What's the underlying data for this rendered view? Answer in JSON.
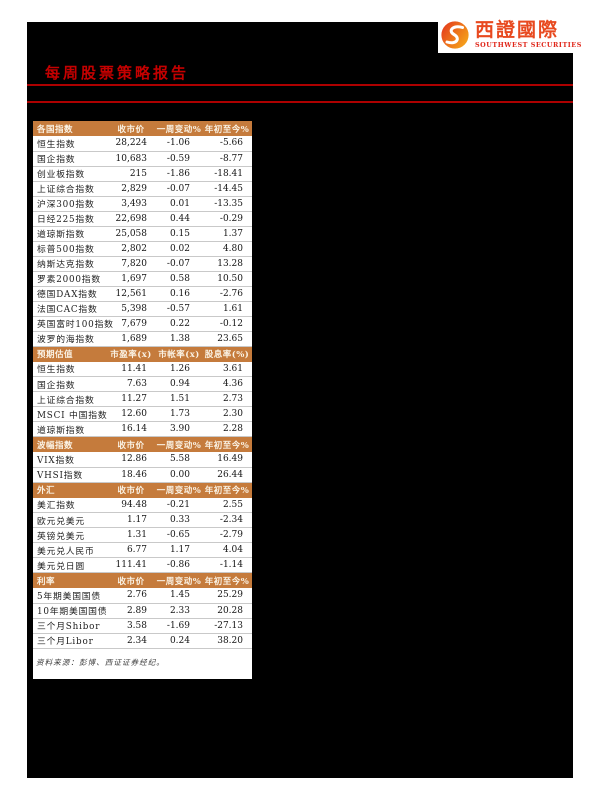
{
  "header": {
    "title": "每周股票策略报告",
    "logo": {
      "cn": "西證國際",
      "en": "SOUTHWEST SECURITIES",
      "icon": "swirl-s-globe-icon"
    }
  },
  "colors": {
    "section_header_orange": "#C57B3C",
    "rule_red": "#AD0000",
    "title_red": "#C40000",
    "logo_red": "#E8491F",
    "page_background": "#000000",
    "panel_background": "#FFFFFF"
  },
  "tables": [
    {
      "header": [
        "各国指数",
        "收市价",
        "一周变动%",
        "年初至今%"
      ],
      "rows": [
        [
          "恒生指数",
          "28,224",
          "-1.06",
          "-5.66"
        ],
        [
          "国企指数",
          "10,683",
          "-0.59",
          "-8.77"
        ],
        [
          "创业板指数",
          "215",
          "-1.86",
          "-18.41"
        ],
        [
          "上证综合指数",
          "2,829",
          "-0.07",
          "-14.45"
        ],
        [
          "沪深300指数",
          "3,493",
          "0.01",
          "-13.35"
        ],
        [
          "日经225指数",
          "22,698",
          "0.44",
          "-0.29"
        ],
        [
          "道琼斯指数",
          "25,058",
          "0.15",
          "1.37"
        ],
        [
          "标普500指数",
          "2,802",
          "0.02",
          "4.80"
        ],
        [
          "纳斯达克指数",
          "7,820",
          "-0.07",
          "13.28"
        ],
        [
          "罗素2000指数",
          "1,697",
          "0.58",
          "10.50"
        ],
        [
          "德国DAX指数",
          "12,561",
          "0.16",
          "-2.76"
        ],
        [
          "法国CAC指数",
          "5,398",
          "-0.57",
          "1.61"
        ],
        [
          "英国富时100指数",
          "7,679",
          "0.22",
          "-0.12"
        ],
        [
          "波罗的海指数",
          "1,689",
          "1.38",
          "23.65"
        ]
      ]
    },
    {
      "header": [
        "预期估值",
        "市盈率(x)",
        "市帐率(x)",
        "股息率(%)"
      ],
      "rows": [
        [
          "恒生指数",
          "11.41",
          "1.26",
          "3.61"
        ],
        [
          "国企指数",
          "7.63",
          "0.94",
          "4.36"
        ],
        [
          "上证综合指数",
          "11.27",
          "1.51",
          "2.73"
        ],
        [
          "MSCI 中国指数",
          "12.60",
          "1.73",
          "2.30"
        ],
        [
          "道琼斯指数",
          "16.14",
          "3.90",
          "2.28"
        ]
      ]
    },
    {
      "header": [
        "波幅指数",
        "收市价",
        "一周变动%",
        "年初至今%"
      ],
      "rows": [
        [
          "VIX指数",
          "12.86",
          "5.58",
          "16.49"
        ],
        [
          "VHSI指数",
          "18.46",
          "0.00",
          "26.44"
        ]
      ]
    },
    {
      "header": [
        "外汇",
        "收市价",
        "一周变动%",
        "年初至今%"
      ],
      "rows": [
        [
          "美汇指数",
          "94.48",
          "-0.21",
          "2.55"
        ],
        [
          "欧元兑美元",
          "1.17",
          "0.33",
          "-2.34"
        ],
        [
          "英镑兑美元",
          "1.31",
          "-0.65",
          "-2.79"
        ],
        [
          "美元兑人民币",
          "6.77",
          "1.17",
          "4.04"
        ],
        [
          "美元兑日圆",
          "111.41",
          "-0.86",
          "-1.14"
        ]
      ]
    },
    {
      "header": [
        "利率",
        "收市价",
        "一周变动%",
        "年初至今%"
      ],
      "rows": [
        [
          "5年期美国国债",
          "2.76",
          "1.45",
          "25.29"
        ],
        [
          "10年期美国国债",
          "2.89",
          "2.33",
          "20.28"
        ],
        [
          "三个月Shibor",
          "3.58",
          "-1.69",
          "-27.13"
        ],
        [
          "三个月Libor",
          "2.34",
          "0.24",
          "38.20"
        ]
      ]
    }
  ],
  "footer": {
    "source_note": "资料来源：彭博、西证证券经纪。"
  }
}
